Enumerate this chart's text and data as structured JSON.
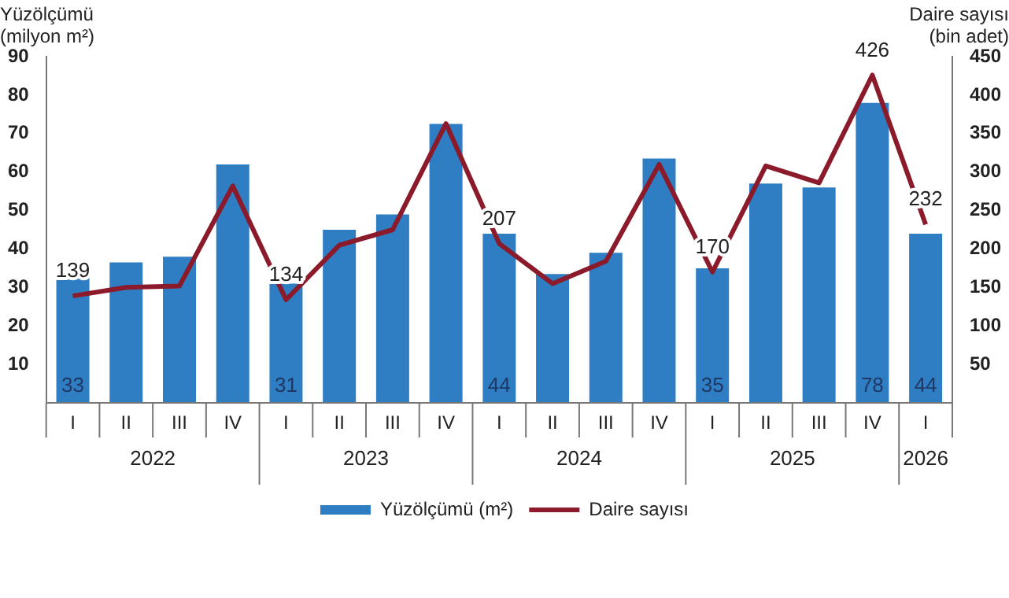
{
  "chart_data": {
    "type": "bar",
    "ylabel": "Yüzölçümü (milyon m²)",
    "y2label": "Daire sayısı (bin adet)",
    "categories": [
      "I",
      "II",
      "III",
      "IV",
      "I",
      "II",
      "III",
      "IV",
      "I",
      "II",
      "III",
      "IV",
      "I",
      "II",
      "III",
      "IV",
      "I"
    ],
    "annotations": [
      "2022",
      "2023",
      "2024",
      "2025",
      "2026"
    ],
    "series": [
      {
        "name": "Yüzölçümü (m²)",
        "color": "#2f7ec3",
        "values": [
          33,
          36.5,
          38,
          62,
          31,
          45,
          49,
          72.5,
          44,
          33.5,
          39,
          63.5,
          35,
          57,
          56,
          78,
          44
        ],
        "value_labels": [
          "33",
          null,
          null,
          null,
          "31",
          null,
          null,
          null,
          "44",
          null,
          null,
          null,
          "35",
          null,
          null,
          "78",
          "44"
        ]
      },
      {
        "name": "Daire sayısı",
        "type": "line",
        "axis": "y2",
        "color": "#8b1a2a",
        "values": [
          139,
          150,
          152,
          282,
          134,
          205,
          225,
          363,
          207,
          155,
          184,
          310,
          170,
          308,
          286,
          426,
          232
        ],
        "value_labels": [
          "139",
          null,
          null,
          null,
          "134",
          null,
          null,
          null,
          "207",
          null,
          null,
          null,
          "170",
          null,
          null,
          "426",
          "232"
        ]
      }
    ],
    "ylim": [
      0,
      90
    ],
    "yticks": [
      10,
      20,
      30,
      40,
      50,
      60,
      70,
      80,
      90
    ],
    "y2lim": [
      0,
      450
    ],
    "y2ticks": [
      50,
      100,
      150,
      200,
      250,
      300,
      350,
      400,
      450
    ],
    "grid": false,
    "legend": "bottom",
    "marker": "none",
    "line_style": "solid"
  }
}
